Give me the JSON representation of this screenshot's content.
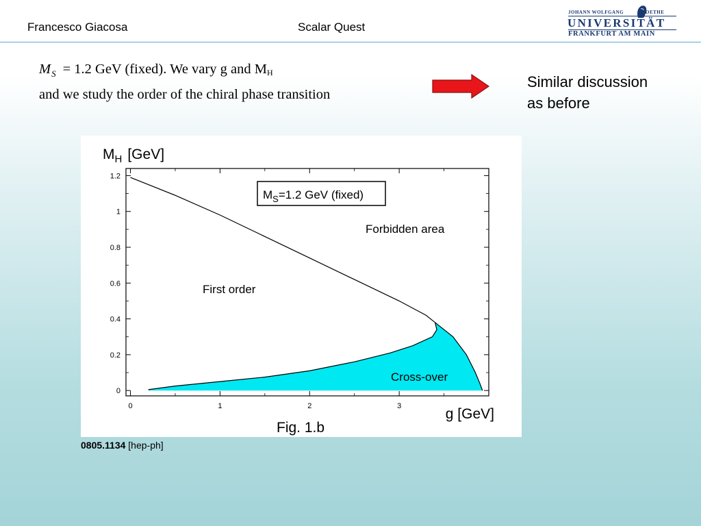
{
  "header": {
    "author": "Francesco Giacosa",
    "title": "Scalar Quest",
    "logo": {
      "line1_left": "JOHANN WOLFGANG",
      "line1_right": "GOETHE",
      "line2": "UNIVERSITÄT",
      "line3": "FRANKFURT AM MAIN",
      "icon": "goethe-portrait-icon"
    }
  },
  "text": {
    "eq1_ms_symbol": "M",
    "eq1_ms_sub": "S",
    "eq1_rest": "= 1.2 GeV (fixed). We vary g and M",
    "eq1_mh_sub": "H",
    "eq2": "and we study the order of the chiral phase transition"
  },
  "side_note": {
    "line1": "Similar discussion",
    "line2": "as before",
    "arrow_icon": "red-arrow-right-icon",
    "arrow_color": "#e8161a"
  },
  "citation": {
    "id": "0805.1134",
    "category": "[hep-ph]"
  },
  "chart_data": {
    "type": "area",
    "ylabel_main": "M",
    "ylabel_sub": "H",
    "ylabel_unit": "[GeV]",
    "xlabel": "g [GeV]",
    "caption": "Fig. 1.b",
    "xlim": [
      -0.05,
      4.0
    ],
    "ylim": [
      -0.03,
      1.24
    ],
    "xticks": [
      0,
      1,
      2,
      3
    ],
    "yticks": [
      0,
      0.2,
      0.4,
      0.6,
      0.8,
      1,
      1.2
    ],
    "legend_box": {
      "main": "M",
      "sub": "S",
      "text": "=1.2 GeV (fixed)"
    },
    "region_labels": {
      "forbidden": "Forbidden area",
      "first_order": "First order",
      "crossover": "Cross-over"
    },
    "fill_color": "#00e8f2",
    "curves": {
      "upper_boundary": [
        [
          0,
          1.19
        ],
        [
          0.5,
          1.09
        ],
        [
          1.0,
          0.98
        ],
        [
          1.5,
          0.86
        ],
        [
          2.0,
          0.74
        ],
        [
          2.5,
          0.62
        ],
        [
          3.0,
          0.5
        ],
        [
          3.3,
          0.42
        ],
        [
          3.4,
          0.38
        ]
      ],
      "spinodal": [
        [
          3.4,
          0.38
        ],
        [
          3.42,
          0.34
        ],
        [
          3.37,
          0.3
        ],
        [
          3.15,
          0.25
        ],
        [
          2.9,
          0.21
        ],
        [
          2.5,
          0.16
        ],
        [
          2.0,
          0.11
        ],
        [
          1.5,
          0.075
        ],
        [
          1.0,
          0.05
        ],
        [
          0.5,
          0.025
        ],
        [
          0.2,
          0.005
        ]
      ],
      "crossover_right": [
        [
          3.4,
          0.38
        ],
        [
          3.6,
          0.3
        ],
        [
          3.75,
          0.2
        ],
        [
          3.85,
          0.1
        ],
        [
          3.9,
          0.04
        ],
        [
          3.93,
          0.0
        ]
      ]
    }
  }
}
